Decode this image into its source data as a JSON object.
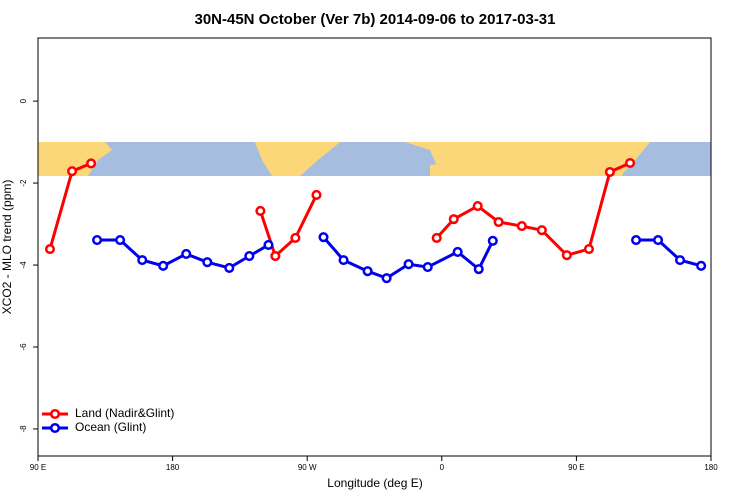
{
  "chart_data": {
    "type": "line",
    "title": "30N-45N October (Ver 7b)   2014-09-06 to 2017-03-31",
    "xlabel": "Longitude (deg E)",
    "ylabel": "XCO2 - MLO trend (ppm)",
    "xlim": [
      90,
      540
    ],
    "ylim": [
      -8.66,
      1.54
    ],
    "xticks": [
      {
        "value": 90,
        "label": "90 E"
      },
      180,
      {
        "value": 270,
        "label": "90 W"
      },
      {
        "value": 360,
        "label": "0"
      },
      {
        "value": 450,
        "label": "90 E"
      },
      {
        "value": 540,
        "label": "180"
      }
    ],
    "yticks": [
      -8,
      -6,
      -4,
      -2,
      0
    ],
    "legend": "bottom-left",
    "series": [
      {
        "name": "Land (Nadir&Glint)",
        "color": "#ff0000",
        "x": [
          98,
          112.8,
          125.5,
          null,
          238.7,
          248.7,
          262.1,
          276.2,
          null,
          356.6,
          368,
          384,
          398,
          413.5,
          426.9,
          443.6,
          458.4,
          472.4,
          485.9
        ],
        "values": [
          -3.61,
          -1.71,
          -1.52,
          null,
          -2.68,
          -3.78,
          -3.34,
          -2.29,
          null,
          -3.34,
          -2.88,
          -2.56,
          -2.95,
          -3.05,
          -3.15,
          -3.76,
          -3.61,
          -1.73,
          -1.51
        ]
      },
      {
        "name": "Ocean (Glint)",
        "color": "#0000ee",
        "x": [
          129.5,
          144.9,
          159.7,
          173.7,
          189.1,
          203.2,
          217.9,
          231.3,
          244.1,
          null,
          280.9,
          294.3,
          310.4,
          323.1,
          337.8,
          350.6,
          370.6,
          384.7,
          394.1,
          null,
          489.9,
          504.6,
          519.3,
          533.4
        ],
        "values": [
          -3.39,
          -3.39,
          -3.88,
          -4.02,
          -3.73,
          -3.93,
          -4.07,
          -3.78,
          -3.51,
          null,
          -3.32,
          -3.88,
          -4.15,
          -4.32,
          -3.98,
          -4.05,
          -3.68,
          -4.1,
          -3.41,
          null,
          -3.39,
          -3.39,
          -3.88,
          -4.02
        ]
      }
    ]
  }
}
